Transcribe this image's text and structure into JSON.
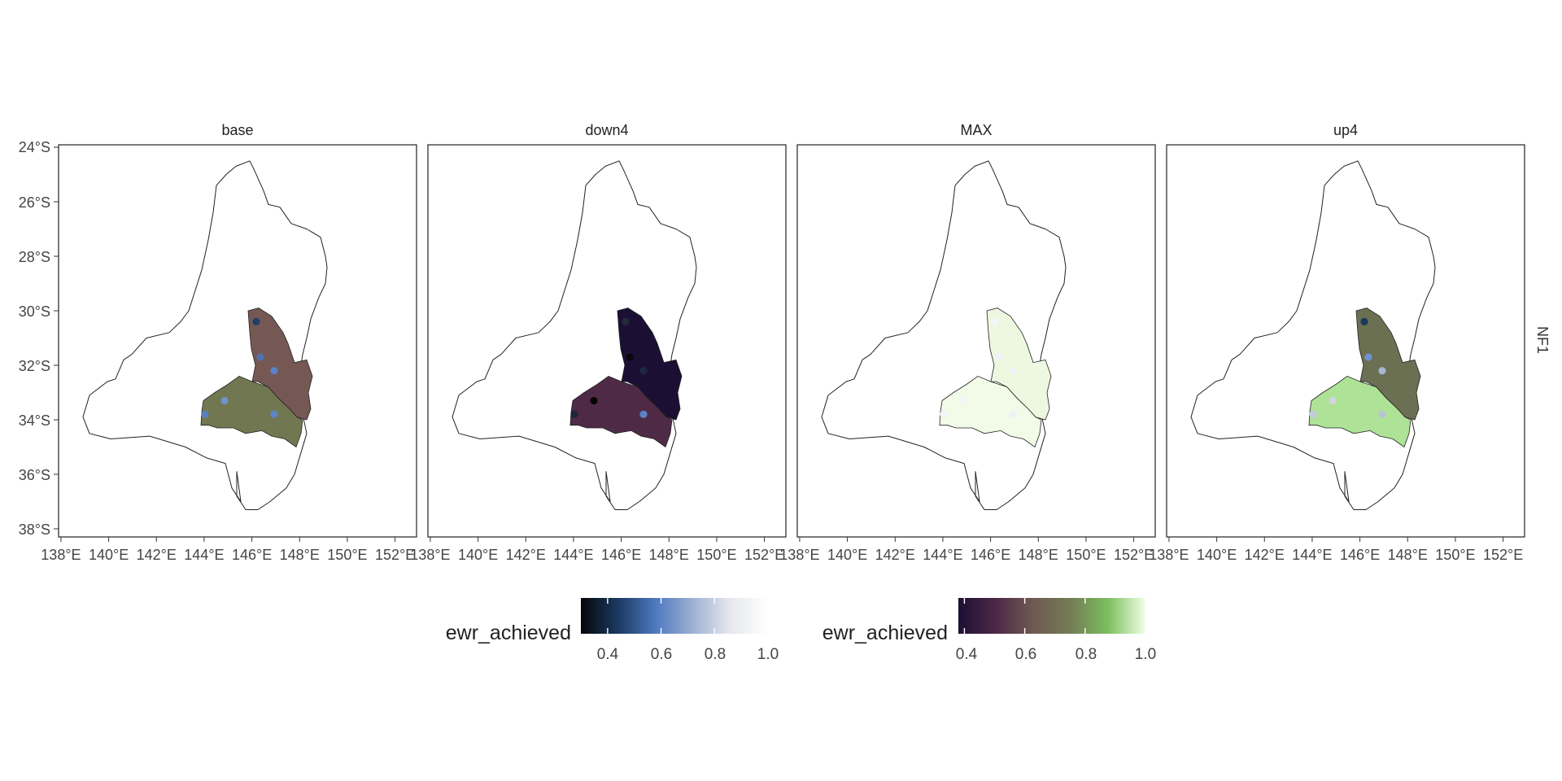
{
  "figure": {
    "strip_right": "NF1",
    "panels": [
      "base",
      "down4",
      "MAX",
      "up4"
    ],
    "x_ticks": [
      "138°E",
      "140°E",
      "142°E",
      "144°E",
      "146°E",
      "148°E",
      "150°E",
      "152°E"
    ],
    "y_ticks": [
      "24°S",
      "26°S",
      "28°S",
      "30°S",
      "32°S",
      "34°S",
      "36°S",
      "38°S"
    ]
  },
  "legends": [
    {
      "title": "ewr_achieved",
      "kind": "points",
      "range": [
        0.3,
        1.0
      ],
      "ticks": [
        "0.4",
        "0.6",
        "0.8",
        "1.0"
      ],
      "colors": [
        "#050608",
        "#1b3a63",
        "#4e79c0",
        "#9fb1d3",
        "#e6e8ee",
        "#ffffff"
      ]
    },
    {
      "title": "ewr_achieved",
      "kind": "areas",
      "range": [
        0.38,
        1.0
      ],
      "ticks": [
        "0.4",
        "0.6",
        "0.8",
        "1.0"
      ],
      "colors": [
        "#1b1034",
        "#4d2747",
        "#6f5a52",
        "#737c55",
        "#7bbf5f",
        "#f1ffe5"
      ]
    }
  ],
  "map_data": {
    "type": "facet_map",
    "region_colors": {
      "base": {
        "north": "#755854",
        "south": "#717851"
      },
      "down4": {
        "north": "#1b1034",
        "south": "#4f2a47"
      },
      "MAX": {
        "north": "#eef8e0",
        "south": "#f1fbe7"
      },
      "up4": {
        "north": "#6b7052",
        "south": "#aee296"
      }
    },
    "point_colors": {
      "base": [
        "#1e3f66",
        "#4f72b4",
        "#5b82c4",
        "#5a7fbf",
        "#6f93cf",
        "#5b86c9"
      ],
      "down4": [
        "#232a3a",
        "#06080c",
        "#1c2740",
        "#1d2639",
        "#050505",
        "#5a83c5"
      ],
      "MAX": [
        "#f4f6fa",
        "#f0f2f8",
        "#eff1f6",
        "#f3f4f8",
        "#f5f5f8",
        "#eef0f5"
      ],
      "up4": [
        "#1a3a60",
        "#6f92cf",
        "#a7b5cf",
        "#c4cbdb",
        "#d2d5dd",
        "#b9c3d6"
      ]
    }
  }
}
